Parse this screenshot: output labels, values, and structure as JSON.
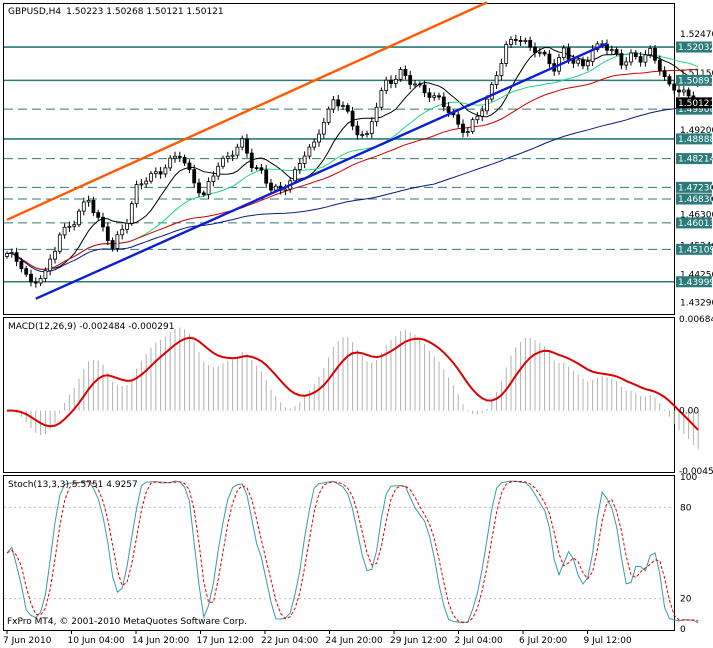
{
  "chart_data": [
    {
      "type": "candlestick",
      "title": "GBPUSD,H4",
      "ohlc_label": "1.50223 1.50268 1.50121 1.50121",
      "ylim": [
        1.4293,
        1.5347
      ],
      "x_labels": [
        "7 Jun 2010",
        "10 Jun 04:00",
        "14 Jun 20:00",
        "17 Jun 12:00",
        "22 Jun 04:00",
        "24 Jun 20:00",
        "29 Jun 12:00",
        "2 Jul 04:00",
        "6 Jul 20:00",
        "9 Jul 12:00"
      ],
      "price_scale_labels": [
        "1.52470",
        "1.51150",
        "1.50121",
        "1.49200",
        "1.48214",
        "1.47230",
        "1.46830",
        "1.46300",
        "1.45240",
        "1.44250",
        "1.43290"
      ],
      "horizontal_levels": [
        {
          "label": "1.52032",
          "value": 1.52032,
          "style": "solid"
        },
        {
          "label": "1.50891",
          "value": 1.50891,
          "style": "solid"
        },
        {
          "label": "1.49906",
          "value": 1.49906,
          "style": "dashed"
        },
        {
          "label": "1.48888",
          "value": 1.48888,
          "style": "solid"
        },
        {
          "label": "1.48214",
          "value": 1.48214,
          "style": "dashed"
        },
        {
          "label": "1.47230",
          "value": 1.4723,
          "style": "dashed"
        },
        {
          "label": "1.46830",
          "value": 1.4683,
          "style": "dashed"
        },
        {
          "label": "1.46013",
          "value": 1.46013,
          "style": "dashed"
        },
        {
          "label": "1.45109",
          "value": 1.45109,
          "style": "dashed"
        },
        {
          "label": "1.43999",
          "value": 1.43999,
          "style": "solid"
        }
      ],
      "current_price": "1.50121",
      "trend_lines": [
        {
          "color": "#ff5a00",
          "from": [
            0,
            1.4612
          ],
          "to": [
            100,
            1.5356
          ]
        },
        {
          "color": "#0b1fd1",
          "from": [
            6,
            1.4342
          ],
          "to": [
            125,
            1.5215
          ]
        }
      ],
      "colors": {
        "candles": "#000000",
        "levels": "#2c7a7a",
        "ma_fast": "#000000",
        "ma_green": "#22d48a",
        "ma_red": "#cc0000",
        "ma_navy": "#0a1a80"
      }
    },
    {
      "type": "histogram+line",
      "title": "MACD(12,26,9) -0.002484 -0.000291",
      "ylim": [
        -0.00451,
        0.00684
      ],
      "y_labels": [
        "0.00684",
        "0.00",
        "-0.00451"
      ],
      "colors": {
        "histogram": "#b0b0b0",
        "signal": "#dd0000"
      }
    },
    {
      "type": "line",
      "title": "Stoch(13,3,3) 5.5751 4.9257",
      "ylim": [
        0,
        100
      ],
      "y_labels": [
        "100",
        "80",
        "20",
        "0"
      ],
      "colors": {
        "main": "#3a9aa8",
        "signal": "#dd0000"
      }
    }
  ],
  "copyright": "FxPro MT4, © 2001-2010 MetaQuotes Software Corp."
}
